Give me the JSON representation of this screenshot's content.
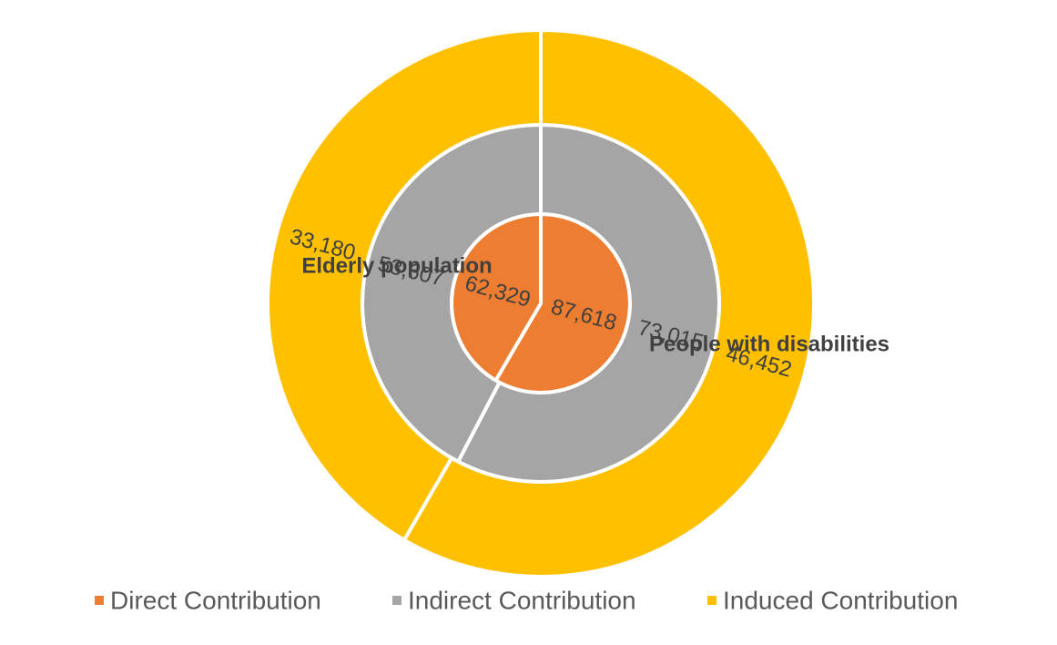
{
  "chart_data": {
    "type": "donut",
    "categories": [
      "Elderly population",
      "People with disabilities"
    ],
    "series": [
      {
        "name": "Direct Contribution",
        "values": [
          87618,
          62329
        ],
        "value_labels": [
          "87,618",
          "62,329"
        ]
      },
      {
        "name": "Indirect Contribution",
        "values": [
          73015,
          53607
        ],
        "value_labels": [
          "73,015",
          "53,607"
        ]
      },
      {
        "name": "Induced Contribution",
        "values": [
          46452,
          33180
        ],
        "value_labels": [
          "46,452",
          "33,180"
        ]
      }
    ],
    "rings": "inner=Direct, middle=Indirect, outer=Induced",
    "legend_position": "bottom",
    "colors": {
      "Direct Contribution": "#ED7D31",
      "Indirect Contribution": "#A5A5A5",
      "Induced Contribution": "#FFC000",
      "separator": "#ffffff",
      "text": "#404040",
      "legend_text": "#595959"
    }
  }
}
